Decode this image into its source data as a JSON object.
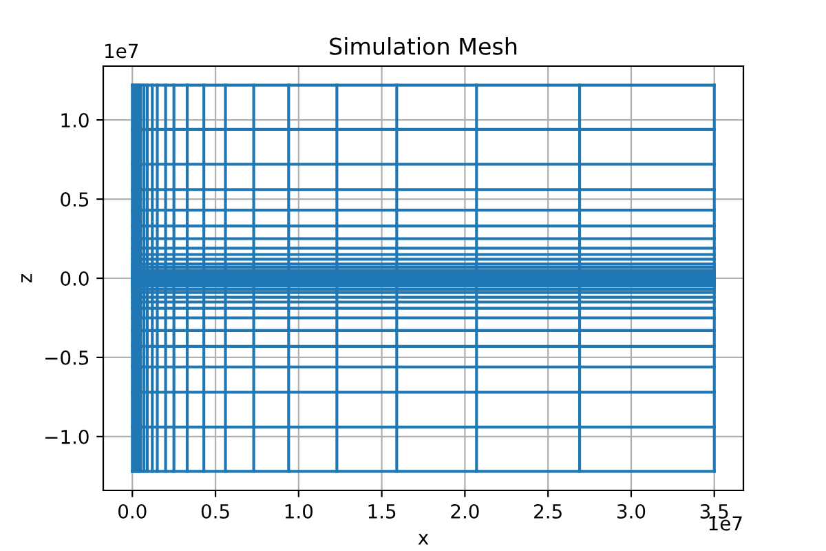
{
  "chart_data": {
    "type": "line",
    "title": "Simulation Mesh",
    "xlabel": "x",
    "ylabel": "z",
    "annotations": [
      "1e7",
      "1e7"
    ],
    "series": [
      {
        "color": "#1f77b4",
        "x": [
          0,
          0
        ],
        "values": [
          -1.22,
          1.22
        ]
      },
      {
        "color": "#1f77b4",
        "x": [
          0.01,
          0.01
        ],
        "values": [
          -1.22,
          1.22
        ]
      },
      {
        "color": "#1f77b4",
        "x": [
          0.02,
          0.02
        ],
        "values": [
          -1.22,
          1.22
        ]
      },
      {
        "color": "#1f77b4",
        "x": [
          0.03,
          0.03
        ],
        "values": [
          -1.22,
          1.22
        ]
      },
      {
        "color": "#1f77b4",
        "x": [
          0.04,
          0.04
        ],
        "values": [
          -1.22,
          1.22
        ]
      },
      {
        "color": "#1f77b4",
        "x": [
          0.05,
          0.05
        ],
        "values": [
          -1.22,
          1.22
        ]
      },
      {
        "color": "#1f77b4",
        "x": [
          0.07,
          0.07
        ],
        "values": [
          -1.22,
          1.22
        ]
      },
      {
        "color": "#1f77b4",
        "x": [
          0.09,
          0.09
        ],
        "values": [
          -1.22,
          1.22
        ]
      },
      {
        "color": "#1f77b4",
        "x": [
          0.12,
          0.12
        ],
        "values": [
          -1.22,
          1.22
        ]
      },
      {
        "color": "#1f77b4",
        "x": [
          0.15,
          0.15
        ],
        "values": [
          -1.22,
          1.22
        ]
      },
      {
        "color": "#1f77b4",
        "x": [
          0.2,
          0.2
        ],
        "values": [
          -1.22,
          1.22
        ]
      },
      {
        "color": "#1f77b4",
        "x": [
          0.25,
          0.25
        ],
        "values": [
          -1.22,
          1.22
        ]
      },
      {
        "color": "#1f77b4",
        "x": [
          0.33,
          0.33
        ],
        "values": [
          -1.22,
          1.22
        ]
      },
      {
        "color": "#1f77b4",
        "x": [
          0.43,
          0.43
        ],
        "values": [
          -1.22,
          1.22
        ]
      },
      {
        "color": "#1f77b4",
        "x": [
          0.56,
          0.56
        ],
        "values": [
          -1.22,
          1.22
        ]
      },
      {
        "color": "#1f77b4",
        "x": [
          0.73,
          0.73
        ],
        "values": [
          -1.22,
          1.22
        ]
      },
      {
        "color": "#1f77b4",
        "x": [
          0.94,
          0.94
        ],
        "values": [
          -1.22,
          1.22
        ]
      },
      {
        "color": "#1f77b4",
        "x": [
          1.23,
          1.23
        ],
        "values": [
          -1.22,
          1.22
        ]
      },
      {
        "color": "#1f77b4",
        "x": [
          1.59,
          1.59
        ],
        "values": [
          -1.22,
          1.22
        ]
      },
      {
        "color": "#1f77b4",
        "x": [
          2.07,
          2.07
        ],
        "values": [
          -1.22,
          1.22
        ]
      },
      {
        "color": "#1f77b4",
        "x": [
          2.69,
          2.69
        ],
        "values": [
          -1.22,
          1.22
        ]
      },
      {
        "color": "#1f77b4",
        "x": [
          3.5,
          3.5
        ],
        "values": [
          -1.22,
          1.22
        ]
      },
      {
        "color": "#1f77b4",
        "x": [
          0,
          3.5
        ],
        "values": [
          1.22,
          1.22
        ]
      },
      {
        "color": "#1f77b4",
        "x": [
          0,
          3.5
        ],
        "values": [
          0.94,
          0.94
        ]
      },
      {
        "color": "#1f77b4",
        "x": [
          0,
          3.5
        ],
        "values": [
          0.72,
          0.72
        ]
      },
      {
        "color": "#1f77b4",
        "x": [
          0,
          3.5
        ],
        "values": [
          0.56,
          0.56
        ]
      },
      {
        "color": "#1f77b4",
        "x": [
          0,
          3.5
        ],
        "values": [
          0.43,
          0.43
        ]
      },
      {
        "color": "#1f77b4",
        "x": [
          0,
          3.5
        ],
        "values": [
          0.33,
          0.33
        ]
      },
      {
        "color": "#1f77b4",
        "x": [
          0,
          3.5
        ],
        "values": [
          0.25,
          0.25
        ]
      },
      {
        "color": "#1f77b4",
        "x": [
          0,
          3.5
        ],
        "values": [
          0.19,
          0.19
        ]
      },
      {
        "color": "#1f77b4",
        "x": [
          0,
          3.5
        ],
        "values": [
          0.15,
          0.15
        ]
      },
      {
        "color": "#1f77b4",
        "x": [
          0,
          3.5
        ],
        "values": [
          0.12,
          0.12
        ]
      },
      {
        "color": "#1f77b4",
        "x": [
          0,
          3.5
        ],
        "values": [
          0.09,
          0.09
        ]
      },
      {
        "color": "#1f77b4",
        "x": [
          0,
          3.5
        ],
        "values": [
          0.07,
          0.07
        ]
      },
      {
        "color": "#1f77b4",
        "x": [
          0,
          3.5
        ],
        "values": [
          0.05,
          0.05
        ]
      },
      {
        "color": "#1f77b4",
        "x": [
          0,
          3.5
        ],
        "values": [
          0.04,
          0.04
        ]
      },
      {
        "color": "#1f77b4",
        "x": [
          0,
          3.5
        ],
        "values": [
          0.03,
          0.03
        ]
      },
      {
        "color": "#1f77b4",
        "x": [
          0,
          3.5
        ],
        "values": [
          0.02,
          0.02
        ]
      },
      {
        "color": "#1f77b4",
        "x": [
          0,
          3.5
        ],
        "values": [
          0.01,
          0.01
        ]
      },
      {
        "color": "#1f77b4",
        "x": [
          0,
          3.5
        ],
        "values": [
          0,
          0
        ]
      },
      {
        "color": "#1f77b4",
        "x": [
          0,
          3.5
        ],
        "values": [
          -0.01,
          -0.01
        ]
      },
      {
        "color": "#1f77b4",
        "x": [
          0,
          3.5
        ],
        "values": [
          -0.02,
          -0.02
        ]
      },
      {
        "color": "#1f77b4",
        "x": [
          0,
          3.5
        ],
        "values": [
          -0.03,
          -0.03
        ]
      },
      {
        "color": "#1f77b4",
        "x": [
          0,
          3.5
        ],
        "values": [
          -0.04,
          -0.04
        ]
      },
      {
        "color": "#1f77b4",
        "x": [
          0,
          3.5
        ],
        "values": [
          -0.05,
          -0.05
        ]
      },
      {
        "color": "#1f77b4",
        "x": [
          0,
          3.5
        ],
        "values": [
          -0.07,
          -0.07
        ]
      },
      {
        "color": "#1f77b4",
        "x": [
          0,
          3.5
        ],
        "values": [
          -0.09,
          -0.09
        ]
      },
      {
        "color": "#1f77b4",
        "x": [
          0,
          3.5
        ],
        "values": [
          -0.12,
          -0.12
        ]
      },
      {
        "color": "#1f77b4",
        "x": [
          0,
          3.5
        ],
        "values": [
          -0.15,
          -0.15
        ]
      },
      {
        "color": "#1f77b4",
        "x": [
          0,
          3.5
        ],
        "values": [
          -0.19,
          -0.19
        ]
      },
      {
        "color": "#1f77b4",
        "x": [
          0,
          3.5
        ],
        "values": [
          -0.25,
          -0.25
        ]
      },
      {
        "color": "#1f77b4",
        "x": [
          0,
          3.5
        ],
        "values": [
          -0.33,
          -0.33
        ]
      },
      {
        "color": "#1f77b4",
        "x": [
          0,
          3.5
        ],
        "values": [
          -0.43,
          -0.43
        ]
      },
      {
        "color": "#1f77b4",
        "x": [
          0,
          3.5
        ],
        "values": [
          -0.56,
          -0.56
        ]
      },
      {
        "color": "#1f77b4",
        "x": [
          0,
          3.5
        ],
        "values": [
          -0.72,
          -0.72
        ]
      },
      {
        "color": "#1f77b4",
        "x": [
          0,
          3.5
        ],
        "values": [
          -0.94,
          -0.94
        ]
      },
      {
        "color": "#1f77b4",
        "x": [
          0,
          3.5
        ],
        "values": [
          -1.22,
          -1.22
        ]
      }
    ],
    "xlim": [
      -0.175,
      3.675
    ],
    "ylim": [
      -1.34,
      1.34
    ],
    "xticks": [
      {
        "value": 0,
        "label": "0.0"
      },
      0.5,
      {
        "value": 1,
        "label": "1.0"
      },
      1.5,
      {
        "value": 2,
        "label": "2.0"
      },
      2.5,
      {
        "value": 3,
        "label": "3.0"
      },
      3.5
    ],
    "yticks": [
      {
        "value": -1.0,
        "label": "−1.0"
      },
      {
        "value": -0.5,
        "label": "−0.5"
      },
      {
        "value": 0,
        "label": "0.0"
      },
      0.5,
      {
        "value": 1,
        "label": "1.0"
      }
    ],
    "grid": true,
    "marker": "none",
    "line_style": "solid"
  }
}
